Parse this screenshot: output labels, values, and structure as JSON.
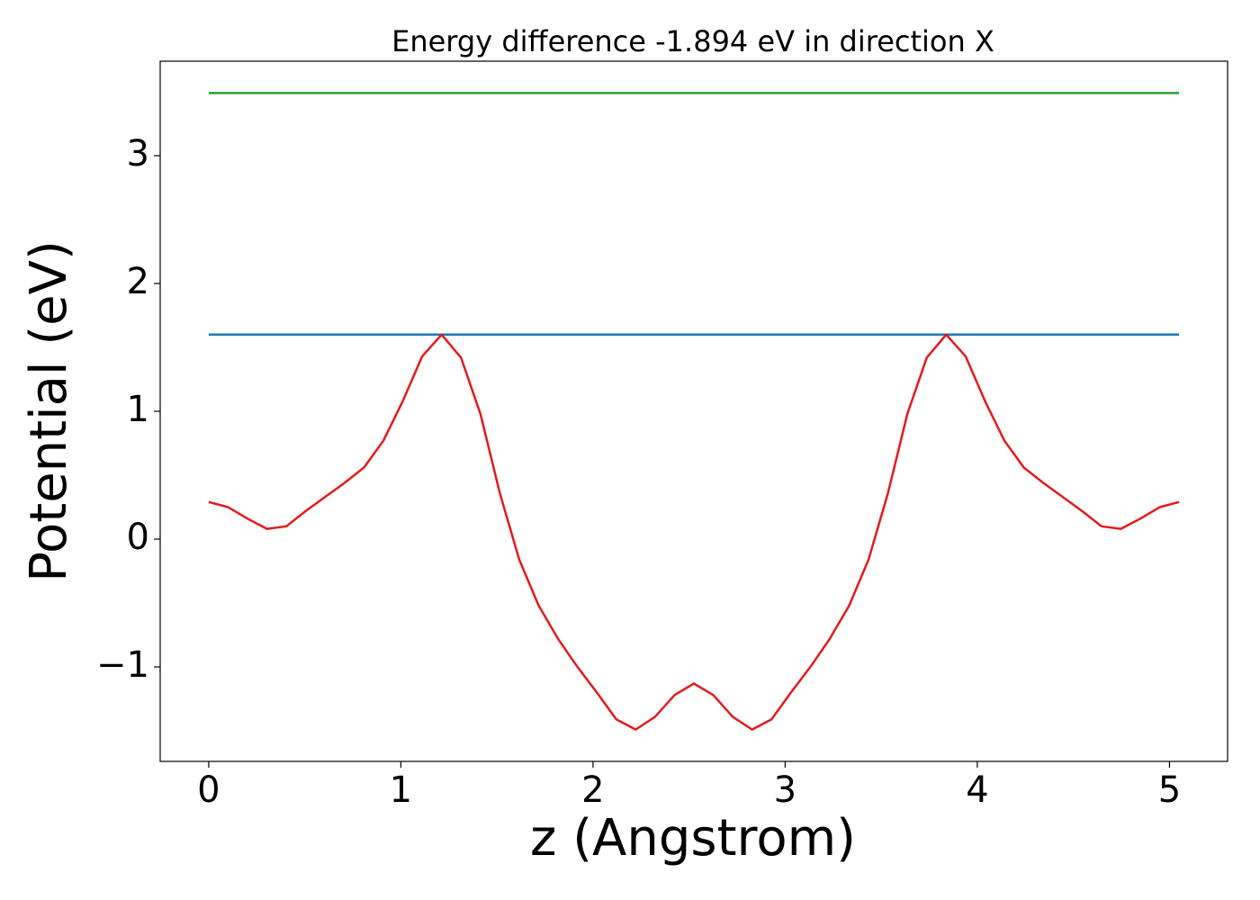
{
  "chart_data": {
    "type": "line",
    "title": "Energy difference -1.894 eV in direction X",
    "xlabel": "z (Angstrom)",
    "ylabel": "Potential (eV)",
    "xlim": [
      -0.2525,
      5.3025
    ],
    "ylim": [
      -1.739,
      3.739
    ],
    "xticks": [
      0,
      1,
      2,
      3,
      4,
      5
    ],
    "yticks": [
      {
        "value": -1,
        "label": "−1"
      },
      0,
      1,
      2,
      3
    ],
    "grid": false,
    "series": [
      {
        "color": "#2ca02c",
        "x": [
          0,
          5.05
        ],
        "values": [
          3.49,
          3.49
        ]
      },
      {
        "color": "#1f77b4",
        "x": [
          0,
          5.05
        ],
        "values": [
          1.6,
          1.6
        ]
      },
      {
        "color": "#e41a1c",
        "x": [
          0,
          0.101,
          0.202,
          0.303,
          0.404,
          0.505,
          0.606,
          0.707,
          0.808,
          0.909,
          1.01,
          1.111,
          1.212,
          1.313,
          1.414,
          1.515,
          1.616,
          1.717,
          1.818,
          1.919,
          2.02,
          2.121,
          2.222,
          2.323,
          2.424,
          2.525,
          2.626,
          2.727,
          2.828,
          2.929,
          3.03,
          3.131,
          3.232,
          3.333,
          3.434,
          3.535,
          3.636,
          3.737,
          3.838,
          3.939,
          4.04,
          4.141,
          4.242,
          4.343,
          4.444,
          4.545,
          4.646,
          4.747,
          4.848,
          4.949,
          5.05
        ],
        "values": [
          0.29,
          0.25,
          0.16,
          0.08,
          0.1,
          0.22,
          0.33,
          0.44,
          0.56,
          0.77,
          1.08,
          1.43,
          1.6,
          1.42,
          0.98,
          0.36,
          -0.16,
          -0.52,
          -0.78,
          -1.0,
          -1.2,
          -1.41,
          -1.49,
          -1.39,
          -1.22,
          -1.13,
          -1.22,
          -1.39,
          -1.49,
          -1.41,
          -1.2,
          -1.0,
          -0.78,
          -0.52,
          -0.16,
          0.36,
          0.98,
          1.42,
          1.6,
          1.43,
          1.08,
          0.77,
          0.56,
          0.44,
          0.33,
          0.22,
          0.1,
          0.08,
          0.16,
          0.25,
          0.29
        ]
      }
    ]
  }
}
